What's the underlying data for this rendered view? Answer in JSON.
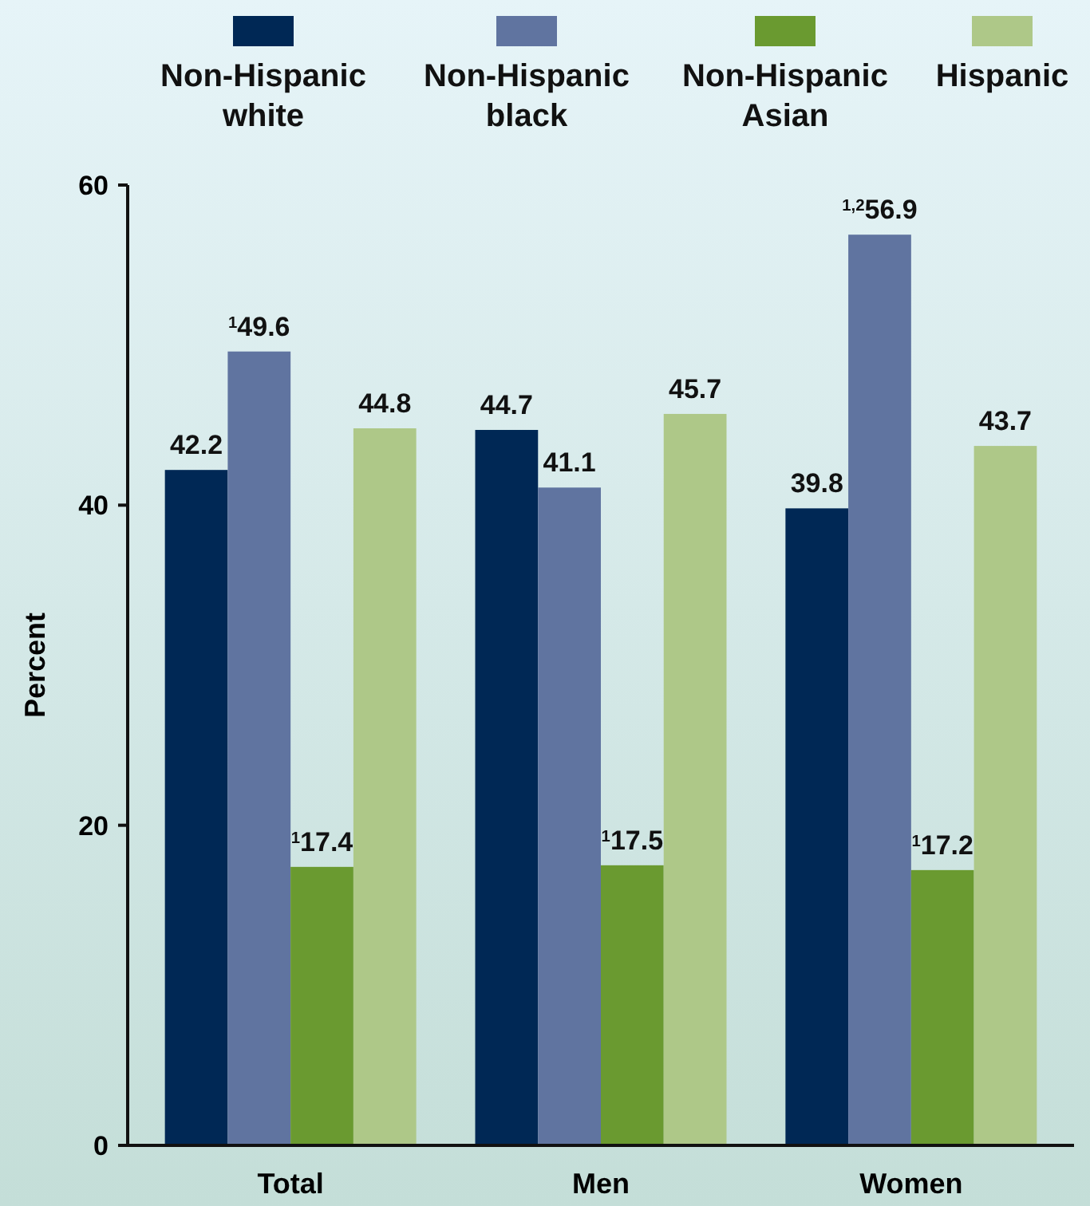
{
  "chart_data": {
    "type": "bar",
    "ylabel": "Percent",
    "categories": [
      "Total",
      "Men",
      "Women"
    ],
    "series": [
      {
        "name": "Non-Hispanic white",
        "color": "#002855",
        "values": [
          42.2,
          44.7,
          39.8
        ],
        "value_labels": [
          "42.2",
          "44.7",
          "39.8"
        ]
      },
      {
        "name": "Non-Hispanic black",
        "color": "#6074a0",
        "values": [
          49.6,
          41.1,
          56.9
        ],
        "value_labels": [
          "$^{1}$49.6",
          "41.1",
          "$^{1,2}$56.9"
        ]
      },
      {
        "name": "Non-Hispanic Asian",
        "color": "#6a9a30",
        "values": [
          17.4,
          17.5,
          17.2
        ],
        "value_labels": [
          "$^{1}$17.4",
          "$^{1}$17.5",
          "$^{1}$17.2"
        ]
      },
      {
        "name": "Hispanic",
        "color": "#aec888",
        "values": [
          44.8,
          45.7,
          43.7
        ],
        "value_labels": [
          "44.8",
          "45.7",
          "43.7"
        ]
      }
    ],
    "ylim": [
      0,
      60
    ],
    "yticks": [
      0,
      20,
      40,
      60
    ],
    "grid": false,
    "legend": "top"
  }
}
